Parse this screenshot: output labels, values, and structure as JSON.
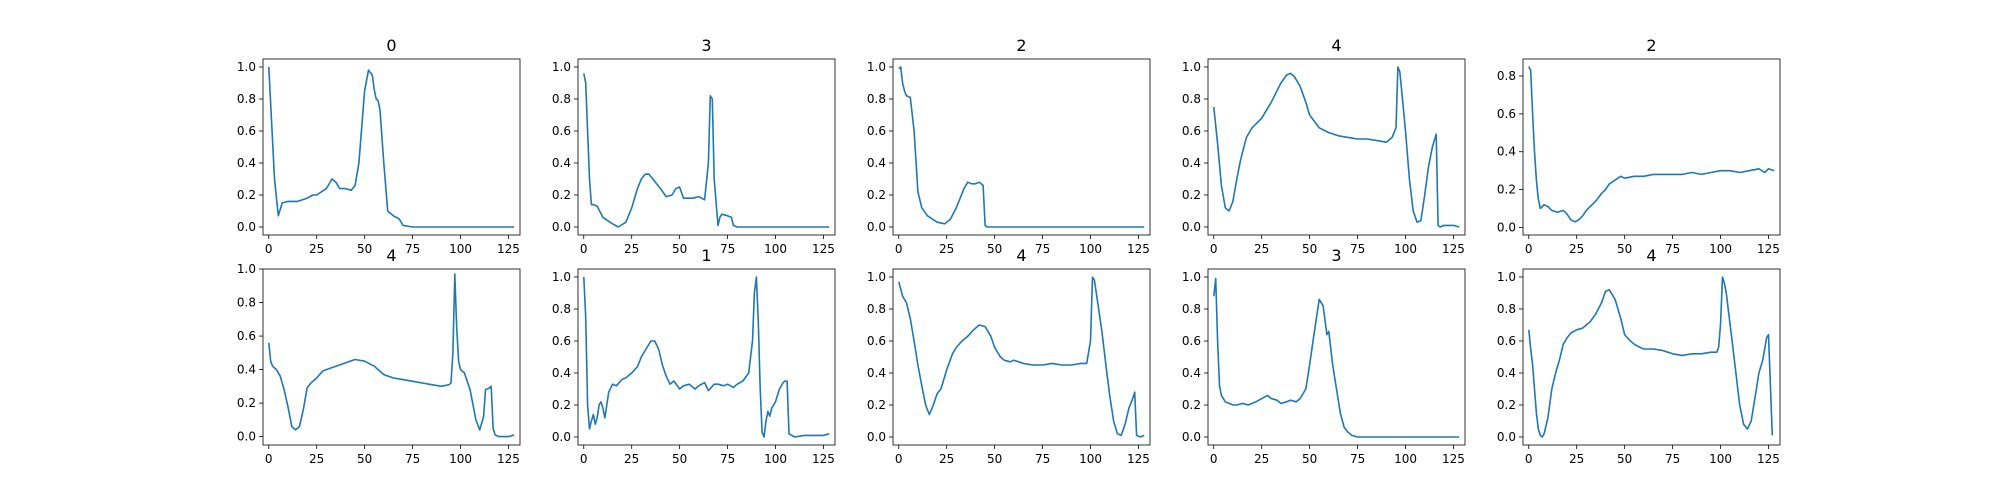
{
  "line_color": "#1f77b4",
  "chart_data": [
    {
      "type": "line",
      "title": "0",
      "xlim": [
        -3,
        131
      ],
      "ylim": [
        -0.05,
        1.05
      ],
      "xticks": [
        "0",
        "25",
        "50",
        "75",
        "100",
        "125"
      ],
      "yticks": [
        "0.0",
        "0.2",
        "0.4",
        "0.6",
        "0.8",
        "1.0"
      ],
      "x": [
        0,
        3,
        5,
        7,
        10,
        15,
        20,
        23,
        25,
        30,
        33,
        35,
        37,
        40,
        43,
        45,
        47,
        50,
        52,
        54,
        55,
        56,
        57,
        58,
        60,
        62,
        65,
        68,
        70,
        75,
        80,
        100,
        128
      ],
      "y": [
        1.0,
        0.3,
        0.07,
        0.15,
        0.16,
        0.16,
        0.18,
        0.2,
        0.2,
        0.24,
        0.3,
        0.28,
        0.24,
        0.24,
        0.23,
        0.26,
        0.4,
        0.85,
        0.98,
        0.95,
        0.86,
        0.8,
        0.79,
        0.73,
        0.4,
        0.1,
        0.07,
        0.05,
        0.01,
        0.0,
        0.0,
        0.0,
        0.0
      ]
    },
    {
      "type": "line",
      "title": "3",
      "xlim": [
        -3,
        131
      ],
      "ylim": [
        -0.05,
        1.05
      ],
      "xticks": [
        "0",
        "25",
        "50",
        "75",
        "100",
        "125"
      ],
      "yticks": [
        "0.0",
        "0.2",
        "0.4",
        "0.6",
        "0.8",
        "1.0"
      ],
      "x": [
        0,
        1,
        2,
        3,
        4,
        5,
        7,
        10,
        15,
        18,
        22,
        25,
        28,
        30,
        32,
        34,
        36,
        40,
        43,
        46,
        48,
        50,
        52,
        54,
        57,
        60,
        63,
        65,
        66,
        67,
        68,
        70,
        71,
        72,
        75,
        77,
        78,
        80,
        100,
        128
      ],
      "y": [
        0.96,
        0.9,
        0.6,
        0.3,
        0.14,
        0.14,
        0.13,
        0.06,
        0.02,
        0.0,
        0.03,
        0.12,
        0.24,
        0.3,
        0.33,
        0.33,
        0.3,
        0.24,
        0.19,
        0.2,
        0.24,
        0.25,
        0.18,
        0.18,
        0.18,
        0.19,
        0.17,
        0.4,
        0.82,
        0.8,
        0.3,
        0.01,
        0.06,
        0.08,
        0.07,
        0.06,
        0.01,
        0.0,
        0.0,
        0.0
      ]
    },
    {
      "type": "line",
      "title": "2",
      "xlim": [
        -3,
        131
      ],
      "ylim": [
        -0.05,
        1.05
      ],
      "xticks": [
        "0",
        "25",
        "50",
        "75",
        "100",
        "125"
      ],
      "yticks": [
        "0.0",
        "0.2",
        "0.4",
        "0.6",
        "0.8",
        "1.0"
      ],
      "x": [
        0,
        1,
        2,
        3,
        4,
        6,
        8,
        10,
        12,
        15,
        20,
        24,
        27,
        30,
        34,
        36,
        38,
        40,
        42,
        44,
        45,
        46,
        50,
        100,
        128
      ],
      "y": [
        0.99,
        1.0,
        0.9,
        0.85,
        0.82,
        0.81,
        0.6,
        0.22,
        0.12,
        0.07,
        0.03,
        0.02,
        0.05,
        0.12,
        0.24,
        0.28,
        0.27,
        0.27,
        0.28,
        0.26,
        0.01,
        0.0,
        0.0,
        0.0,
        0.0
      ]
    },
    {
      "type": "line",
      "title": "4",
      "xlim": [
        -3,
        131
      ],
      "ylim": [
        -0.05,
        1.05
      ],
      "xticks": [
        "0",
        "25",
        "50",
        "75",
        "100",
        "125"
      ],
      "yticks": [
        "0.0",
        "0.2",
        "0.4",
        "0.6",
        "0.8",
        "1.0"
      ],
      "x": [
        0,
        2,
        4,
        6,
        8,
        10,
        12,
        14,
        17,
        20,
        25,
        30,
        35,
        38,
        40,
        42,
        45,
        48,
        50,
        55,
        60,
        65,
        70,
        75,
        80,
        85,
        90,
        93,
        95,
        96,
        97,
        98,
        100,
        102,
        104,
        106,
        108,
        110,
        112,
        114,
        116,
        117,
        118,
        120,
        125,
        128
      ],
      "y": [
        0.75,
        0.52,
        0.26,
        0.12,
        0.1,
        0.16,
        0.3,
        0.42,
        0.56,
        0.62,
        0.68,
        0.78,
        0.9,
        0.95,
        0.96,
        0.94,
        0.88,
        0.78,
        0.7,
        0.62,
        0.59,
        0.57,
        0.56,
        0.55,
        0.55,
        0.54,
        0.53,
        0.56,
        0.62,
        1.0,
        0.97,
        0.85,
        0.6,
        0.3,
        0.1,
        0.03,
        0.04,
        0.2,
        0.38,
        0.5,
        0.58,
        0.01,
        0.0,
        0.01,
        0.01,
        0.0
      ]
    },
    {
      "type": "line",
      "title": "2",
      "xlim": [
        -3,
        131
      ],
      "ylim": [
        -0.04,
        0.89
      ],
      "xticks": [
        "0",
        "25",
        "50",
        "75",
        "100",
        "125"
      ],
      "yticks": [
        "0.0",
        "0.2",
        "0.4",
        "0.6",
        "0.8"
      ],
      "x": [
        0,
        1,
        2,
        3,
        4,
        5,
        6,
        8,
        10,
        12,
        15,
        18,
        20,
        22,
        24,
        26,
        28,
        30,
        32,
        35,
        38,
        40,
        42,
        45,
        48,
        50,
        55,
        60,
        65,
        70,
        75,
        80,
        85,
        90,
        95,
        100,
        105,
        110,
        115,
        120,
        123,
        125,
        128
      ],
      "y": [
        0.85,
        0.83,
        0.6,
        0.4,
        0.25,
        0.15,
        0.1,
        0.12,
        0.11,
        0.09,
        0.08,
        0.09,
        0.07,
        0.04,
        0.03,
        0.04,
        0.06,
        0.09,
        0.11,
        0.14,
        0.18,
        0.2,
        0.23,
        0.25,
        0.27,
        0.26,
        0.27,
        0.27,
        0.28,
        0.28,
        0.28,
        0.28,
        0.29,
        0.28,
        0.29,
        0.3,
        0.3,
        0.29,
        0.3,
        0.31,
        0.29,
        0.31,
        0.3
      ]
    },
    {
      "type": "line",
      "title": "4",
      "xlim": [
        -3,
        131
      ],
      "ylim": [
        -0.05,
        1.0
      ],
      "xticks": [
        "0",
        "25",
        "50",
        "75",
        "100",
        "125"
      ],
      "yticks": [
        "0.0",
        "0.2",
        "0.4",
        "0.6",
        "0.8",
        "1.0"
      ],
      "x": [
        0,
        1,
        2,
        4,
        6,
        8,
        10,
        12,
        14,
        16,
        18,
        20,
        22,
        25,
        28,
        30,
        35,
        40,
        45,
        50,
        55,
        60,
        65,
        70,
        75,
        80,
        85,
        90,
        94,
        95,
        96,
        97,
        98,
        99,
        100,
        102,
        105,
        108,
        110,
        112,
        113,
        115,
        116,
        117,
        118,
        120,
        125,
        128
      ],
      "y": [
        0.56,
        0.45,
        0.42,
        0.4,
        0.36,
        0.28,
        0.18,
        0.06,
        0.04,
        0.06,
        0.16,
        0.29,
        0.32,
        0.35,
        0.39,
        0.4,
        0.42,
        0.44,
        0.46,
        0.45,
        0.42,
        0.37,
        0.35,
        0.34,
        0.33,
        0.32,
        0.31,
        0.3,
        0.31,
        0.32,
        0.5,
        0.97,
        0.65,
        0.45,
        0.4,
        0.38,
        0.28,
        0.1,
        0.04,
        0.12,
        0.28,
        0.29,
        0.3,
        0.05,
        0.01,
        0.0,
        0.0,
        0.01
      ]
    },
    {
      "type": "line",
      "title": "1",
      "xlim": [
        -3,
        131
      ],
      "ylim": [
        -0.05,
        1.05
      ],
      "xticks": [
        "0",
        "25",
        "50",
        "75",
        "100",
        "125"
      ],
      "yticks": [
        "0.0",
        "0.2",
        "0.4",
        "0.6",
        "0.8",
        "1.0"
      ],
      "x": [
        0,
        1,
        2,
        3,
        4,
        5,
        6,
        7,
        8,
        9,
        10,
        11,
        12,
        13,
        15,
        17,
        20,
        22,
        25,
        28,
        30,
        33,
        35,
        37,
        39,
        41,
        43,
        45,
        47,
        50,
        52,
        55,
        58,
        60,
        63,
        65,
        68,
        70,
        73,
        75,
        78,
        80,
        83,
        86,
        88,
        89,
        90,
        91,
        92,
        93,
        94,
        95,
        96,
        97,
        98,
        100,
        102,
        104,
        105,
        106,
        107,
        110,
        115,
        120,
        125,
        128
      ],
      "y": [
        1.0,
        0.75,
        0.2,
        0.05,
        0.1,
        0.14,
        0.08,
        0.12,
        0.2,
        0.22,
        0.18,
        0.12,
        0.2,
        0.28,
        0.33,
        0.32,
        0.36,
        0.37,
        0.4,
        0.44,
        0.5,
        0.56,
        0.6,
        0.6,
        0.55,
        0.45,
        0.38,
        0.33,
        0.35,
        0.3,
        0.32,
        0.33,
        0.3,
        0.32,
        0.34,
        0.29,
        0.33,
        0.33,
        0.32,
        0.33,
        0.31,
        0.33,
        0.35,
        0.4,
        0.6,
        0.9,
        1.0,
        0.72,
        0.3,
        0.03,
        0.0,
        0.1,
        0.16,
        0.13,
        0.18,
        0.22,
        0.3,
        0.34,
        0.35,
        0.35,
        0.02,
        0.0,
        0.01,
        0.01,
        0.01,
        0.02
      ]
    },
    {
      "type": "line",
      "title": "4",
      "xlim": [
        -3,
        131
      ],
      "ylim": [
        -0.05,
        1.05
      ],
      "xticks": [
        "0",
        "25",
        "50",
        "75",
        "100",
        "125"
      ],
      "yticks": [
        "0.0",
        "0.2",
        "0.4",
        "0.6",
        "0.8",
        "1.0"
      ],
      "x": [
        0,
        2,
        4,
        6,
        8,
        10,
        12,
        14,
        16,
        18,
        20,
        22,
        25,
        28,
        30,
        33,
        36,
        39,
        42,
        45,
        48,
        50,
        53,
        55,
        58,
        60,
        65,
        70,
        75,
        80,
        85,
        90,
        95,
        98,
        100,
        101,
        102,
        103,
        104,
        106,
        108,
        110,
        112,
        114,
        116,
        118,
        120,
        122,
        123,
        124,
        126,
        128
      ],
      "y": [
        0.97,
        0.88,
        0.84,
        0.74,
        0.6,
        0.45,
        0.32,
        0.2,
        0.14,
        0.2,
        0.27,
        0.3,
        0.42,
        0.52,
        0.56,
        0.6,
        0.63,
        0.67,
        0.7,
        0.69,
        0.63,
        0.56,
        0.5,
        0.48,
        0.47,
        0.48,
        0.46,
        0.45,
        0.45,
        0.46,
        0.45,
        0.45,
        0.46,
        0.46,
        0.6,
        1.0,
        0.98,
        0.9,
        0.82,
        0.65,
        0.45,
        0.26,
        0.1,
        0.02,
        0.01,
        0.08,
        0.18,
        0.24,
        0.28,
        0.01,
        0.0,
        0.01
      ]
    },
    {
      "type": "line",
      "title": "3",
      "xlim": [
        -3,
        131
      ],
      "ylim": [
        -0.05,
        1.05
      ],
      "xticks": [
        "0",
        "25",
        "50",
        "75",
        "100",
        "125"
      ],
      "yticks": [
        "0.0",
        "0.2",
        "0.4",
        "0.6",
        "0.8",
        "1.0"
      ],
      "x": [
        0,
        1,
        2,
        3,
        4,
        6,
        8,
        10,
        12,
        15,
        18,
        20,
        22,
        25,
        28,
        30,
        33,
        35,
        38,
        40,
        43,
        45,
        48,
        50,
        52,
        54,
        55,
        57,
        59,
        60,
        62,
        64,
        66,
        68,
        70,
        72,
        75,
        80,
        100,
        128
      ],
      "y": [
        0.88,
        0.99,
        0.6,
        0.32,
        0.26,
        0.22,
        0.21,
        0.2,
        0.2,
        0.21,
        0.2,
        0.21,
        0.22,
        0.24,
        0.26,
        0.24,
        0.23,
        0.21,
        0.22,
        0.23,
        0.22,
        0.24,
        0.3,
        0.45,
        0.62,
        0.78,
        0.86,
        0.82,
        0.64,
        0.66,
        0.45,
        0.3,
        0.15,
        0.06,
        0.03,
        0.01,
        0.0,
        0.0,
        0.0,
        0.0
      ]
    },
    {
      "type": "line",
      "title": "4",
      "xlim": [
        -3,
        131
      ],
      "ylim": [
        -0.05,
        1.05
      ],
      "xticks": [
        "0",
        "25",
        "50",
        "75",
        "100",
        "125"
      ],
      "yticks": [
        "0.0",
        "0.2",
        "0.4",
        "0.6",
        "0.8",
        "1.0"
      ],
      "x": [
        0,
        1,
        2,
        3,
        4,
        5,
        6,
        7,
        8,
        10,
        12,
        14,
        16,
        18,
        20,
        22,
        25,
        28,
        30,
        32,
        35,
        38,
        40,
        42,
        45,
        48,
        50,
        53,
        55,
        58,
        60,
        65,
        70,
        75,
        80,
        85,
        90,
        95,
        98,
        99,
        100,
        101,
        102,
        103,
        104,
        106,
        108,
        110,
        112,
        114,
        116,
        118,
        120,
        122,
        123,
        124,
        125,
        127
      ],
      "y": [
        0.67,
        0.55,
        0.45,
        0.3,
        0.15,
        0.05,
        0.01,
        0.0,
        0.02,
        0.12,
        0.3,
        0.4,
        0.48,
        0.58,
        0.62,
        0.65,
        0.67,
        0.68,
        0.7,
        0.72,
        0.77,
        0.84,
        0.91,
        0.92,
        0.86,
        0.74,
        0.64,
        0.6,
        0.58,
        0.56,
        0.55,
        0.55,
        0.54,
        0.52,
        0.51,
        0.52,
        0.52,
        0.53,
        0.53,
        0.56,
        0.7,
        1.0,
        0.96,
        0.9,
        0.8,
        0.6,
        0.4,
        0.2,
        0.08,
        0.05,
        0.1,
        0.25,
        0.4,
        0.48,
        0.55,
        0.62,
        0.64,
        0.01
      ]
    }
  ]
}
